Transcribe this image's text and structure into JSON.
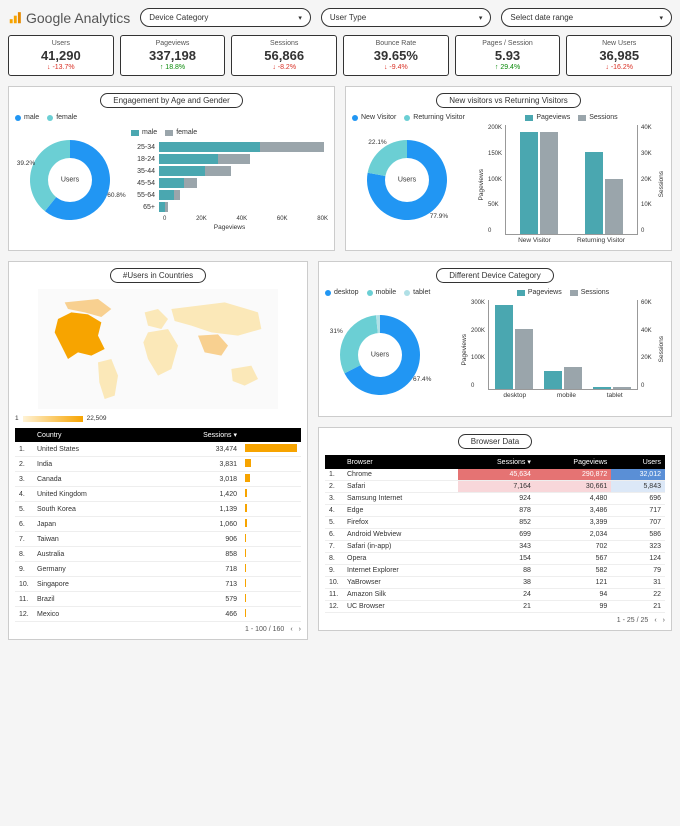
{
  "header": {
    "brand": "Google Analytics",
    "dropdowns": [
      "Device Category",
      "User Type",
      "Select date range"
    ]
  },
  "kpis": [
    {
      "label": "Users",
      "value": "41,290",
      "delta": "-13.7%",
      "dir": "down"
    },
    {
      "label": "Pageviews",
      "value": "337,198",
      "delta": "18.8%",
      "dir": "up"
    },
    {
      "label": "Sessions",
      "value": "56,866",
      "delta": "-8.2%",
      "dir": "down"
    },
    {
      "label": "Bounce Rate",
      "value": "39.65%",
      "delta": "-9.4%",
      "dir": "down"
    },
    {
      "label": "Pages / Session",
      "value": "5.93",
      "delta": "29.4%",
      "dir": "up"
    },
    {
      "label": "New Users",
      "value": "36,985",
      "delta": "-16.2%",
      "dir": "down"
    }
  ],
  "colors": {
    "blue": "#2196f3",
    "cyan": "#6bcfd4",
    "teal": "#4aa7b0",
    "grey": "#9aa5ab",
    "orange": "#f7a400"
  },
  "engagement": {
    "title": "Engagement by Age and Gender",
    "donut": {
      "center": "Users",
      "legend": [
        {
          "label": "male",
          "color": "#2196f3"
        },
        {
          "label": "female",
          "color": "#6bcfd4"
        }
      ],
      "slices": [
        {
          "pct": 60.8,
          "color": "#2196f3",
          "label": "60.8%"
        },
        {
          "pct": 39.2,
          "color": "#6bcfd4",
          "label": "39.2%"
        }
      ]
    },
    "bars": {
      "legend": [
        {
          "label": "male",
          "color": "#4aa7b0"
        },
        {
          "label": "female",
          "color": "#9aa5ab"
        }
      ],
      "xlabel": "Pageviews",
      "xmax": 80000,
      "xticks": [
        "0",
        "20K",
        "40K",
        "60K",
        "80K"
      ],
      "rows": [
        {
          "cat": "25-34",
          "male": 48000,
          "female": 30000
        },
        {
          "cat": "18-24",
          "male": 28000,
          "female": 15000
        },
        {
          "cat": "35-44",
          "male": 22000,
          "female": 12000
        },
        {
          "cat": "45-54",
          "male": 12000,
          "female": 6000
        },
        {
          "cat": "55-64",
          "male": 7000,
          "female": 3000
        },
        {
          "cat": "65+",
          "male": 3000,
          "female": 1500
        }
      ]
    }
  },
  "visitors": {
    "title": "New visitors vs Returning Visitors",
    "donut": {
      "center": "Users",
      "legend": [
        {
          "label": "New Visitor",
          "color": "#2196f3"
        },
        {
          "label": "Returning Visitor",
          "color": "#6bcfd4"
        }
      ],
      "slices": [
        {
          "pct": 77.9,
          "color": "#2196f3",
          "label": "77.9%"
        },
        {
          "pct": 22.1,
          "color": "#6bcfd4",
          "label": "22.1%"
        }
      ]
    },
    "bars": {
      "legend": [
        {
          "label": "Pageviews",
          "color": "#4aa7b0"
        },
        {
          "label": "Sessions",
          "color": "#9aa5ab"
        }
      ],
      "ylabel_l": "Pageviews",
      "ylabel_r": "Sessions",
      "yl_max": 200000,
      "yr_max": 40000,
      "yl_ticks": [
        "200K",
        "150K",
        "100K",
        "50K",
        "0"
      ],
      "yr_ticks": [
        "40K",
        "30K",
        "20K",
        "10K",
        "0"
      ],
      "groups": [
        {
          "cat": "New Visitor",
          "pv": 185000,
          "ss": 37000
        },
        {
          "cat": "Returning Visitor",
          "pv": 150000,
          "ss": 20000
        }
      ]
    }
  },
  "countries": {
    "title": "#Users in Countries",
    "legend_min": "1",
    "legend_max": "22,509",
    "table": {
      "cols": [
        "",
        "Country",
        "Sessions ▾",
        ""
      ],
      "max": 33474,
      "rows": [
        [
          "1.",
          "United States",
          "33,474",
          33474
        ],
        [
          "2.",
          "India",
          "3,831",
          3831
        ],
        [
          "3.",
          "Canada",
          "3,018",
          3018
        ],
        [
          "4.",
          "United Kingdom",
          "1,420",
          1420
        ],
        [
          "5.",
          "South Korea",
          "1,139",
          1139
        ],
        [
          "6.",
          "Japan",
          "1,060",
          1060
        ],
        [
          "7.",
          "Taiwan",
          "906",
          906
        ],
        [
          "8.",
          "Australia",
          "858",
          858
        ],
        [
          "9.",
          "Germany",
          "718",
          718
        ],
        [
          "10.",
          "Singapore",
          "713",
          713
        ],
        [
          "11.",
          "Brazil",
          "579",
          579
        ],
        [
          "12.",
          "Mexico",
          "466",
          466
        ]
      ],
      "pager": "1 - 100 / 160"
    }
  },
  "devices": {
    "title": "Different Device Category",
    "donut": {
      "center": "Users",
      "legend": [
        {
          "label": "desktop",
          "color": "#2196f3"
        },
        {
          "label": "mobile",
          "color": "#6bcfd4"
        },
        {
          "label": "tablet",
          "color": "#b0e0e6"
        }
      ],
      "slices": [
        {
          "pct": 67.4,
          "color": "#2196f3",
          "label": "67.4%"
        },
        {
          "pct": 31,
          "color": "#6bcfd4",
          "label": "31%"
        },
        {
          "pct": 1.6,
          "color": "#b0e0e6",
          "label": ""
        }
      ]
    },
    "bars": {
      "legend": [
        {
          "label": "Pageviews",
          "color": "#4aa7b0"
        },
        {
          "label": "Sessions",
          "color": "#9aa5ab"
        }
      ],
      "ylabel_l": "Pageviews",
      "ylabel_r": "Sessions",
      "yl_max": 300000,
      "yr_max": 60000,
      "yl_ticks": [
        "300K",
        "200K",
        "100K",
        "0"
      ],
      "yr_ticks": [
        "60K",
        "40K",
        "20K",
        "0"
      ],
      "groups": [
        {
          "cat": "desktop",
          "pv": 280000,
          "ss": 40000
        },
        {
          "cat": "mobile",
          "pv": 60000,
          "ss": 15000
        },
        {
          "cat": "tablet",
          "pv": 6000,
          "ss": 1500
        }
      ]
    }
  },
  "browsers": {
    "title": "Browser Data",
    "cols": [
      "",
      "Browser",
      "Sessions ▾",
      "Pageviews",
      "Users"
    ],
    "rows": [
      [
        "1.",
        "Chrome",
        "45,634",
        "290,872",
        "32,012",
        "hot"
      ],
      [
        "2.",
        "Safari",
        "7,164",
        "30,661",
        "5,843",
        "warm"
      ],
      [
        "3.",
        "Samsung Internet",
        "924",
        "4,480",
        "696",
        ""
      ],
      [
        "4.",
        "Edge",
        "878",
        "3,486",
        "717",
        ""
      ],
      [
        "5.",
        "Firefox",
        "852",
        "3,399",
        "707",
        ""
      ],
      [
        "6.",
        "Android Webview",
        "699",
        "2,034",
        "586",
        ""
      ],
      [
        "7.",
        "Safari (in-app)",
        "343",
        "702",
        "323",
        ""
      ],
      [
        "8.",
        "Opera",
        "154",
        "567",
        "124",
        ""
      ],
      [
        "9.",
        "Internet Explorer",
        "88",
        "582",
        "79",
        ""
      ],
      [
        "10.",
        "YaBrowser",
        "38",
        "121",
        "31",
        ""
      ],
      [
        "11.",
        "Amazon Silk",
        "24",
        "94",
        "22",
        ""
      ],
      [
        "12.",
        "UC Browser",
        "21",
        "99",
        "21",
        ""
      ]
    ],
    "pager": "1 - 25 / 25"
  }
}
